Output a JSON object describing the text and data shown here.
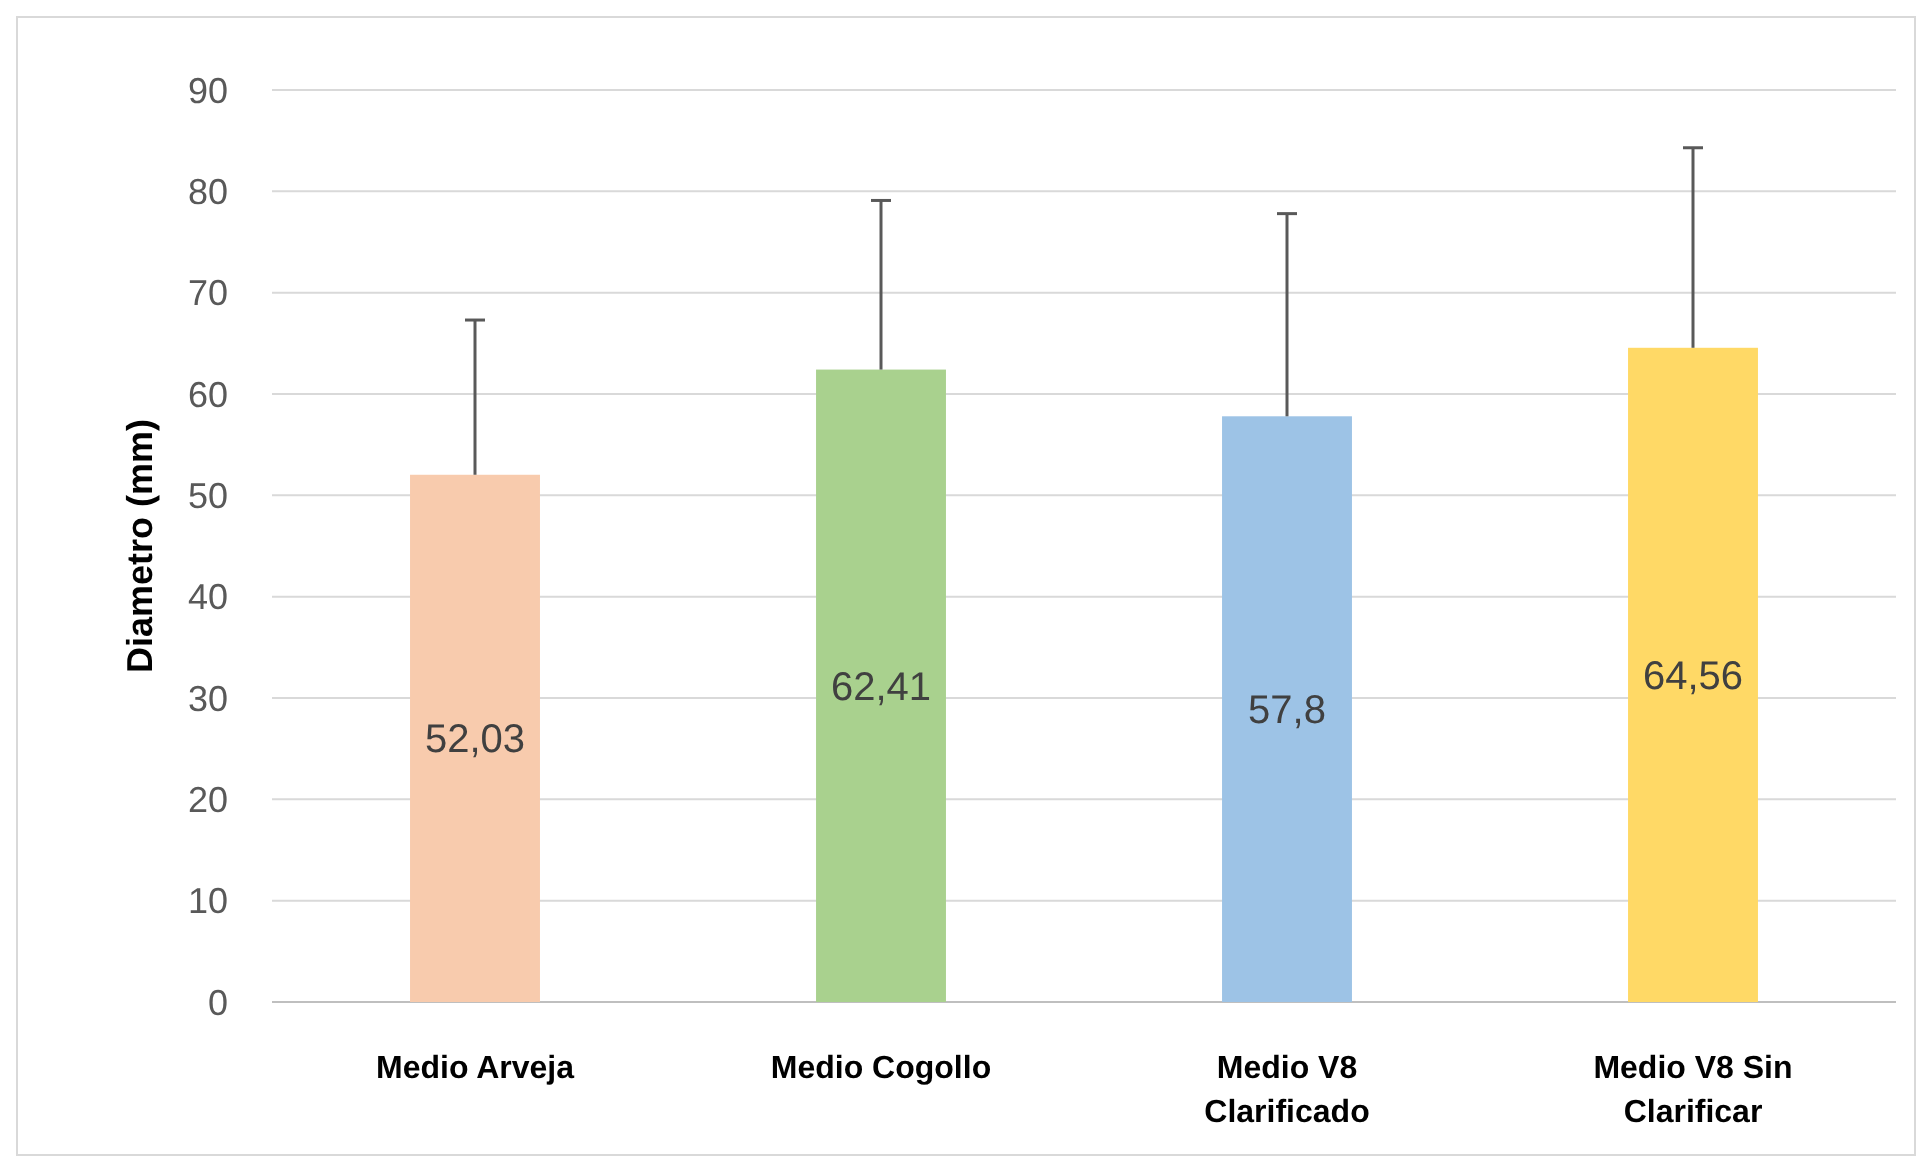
{
  "chart_data": {
    "type": "bar",
    "ylabel": "Diametro (mm)",
    "categories": [
      "Medio Arveja",
      "Medio Cogollo",
      "Medio V8 Clarificado",
      "Medio V8 Sin Clarificar"
    ],
    "values": [
      52.03,
      62.41,
      57.8,
      64.56
    ],
    "colors": [
      "#f8cbad",
      "#a9d18e",
      "#9dc3e6",
      "#ffd966"
    ],
    "errors": [
      [
        52.03,
        67.3
      ],
      [
        62.41,
        79.1
      ],
      [
        57.8,
        77.8
      ],
      [
        64.56,
        84.3
      ]
    ],
    "value_labels": [
      "52,03",
      "62,41",
      "57,8",
      "64,56"
    ],
    "ylim": [
      0,
      90
    ],
    "yticks": [
      0,
      10,
      20,
      30,
      40,
      50,
      60,
      70,
      80,
      90
    ],
    "grid": "y"
  }
}
